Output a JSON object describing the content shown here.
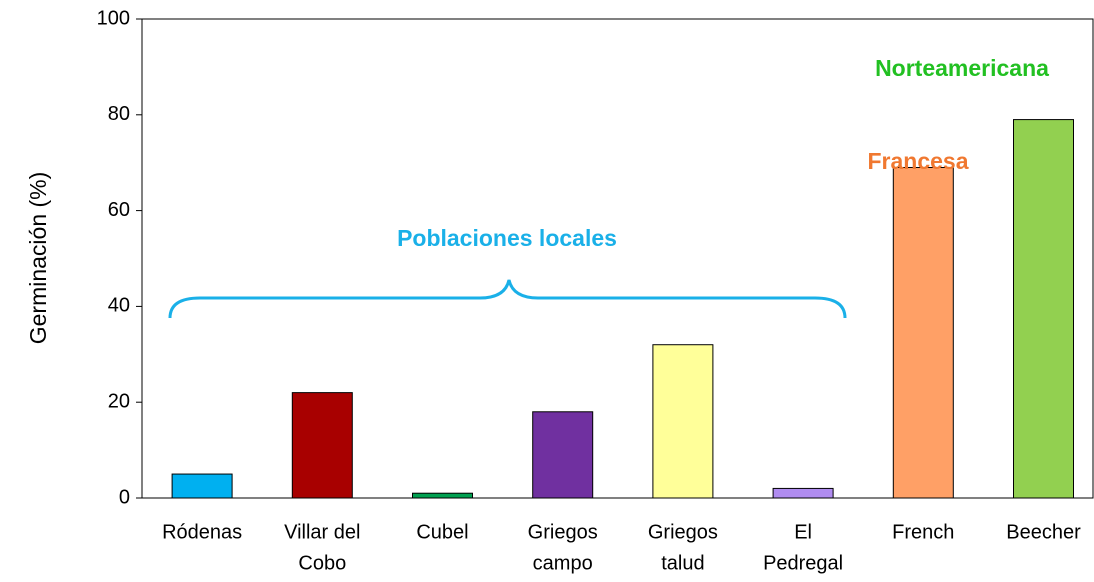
{
  "chart_data": {
    "type": "bar",
    "ylabel": "Germinación (%)",
    "categories": [
      [
        "Ródenas"
      ],
      [
        "Villar del",
        "Cobo"
      ],
      [
        "Cubel"
      ],
      [
        "Griegos",
        "campo"
      ],
      [
        "Griegos",
        "talud"
      ],
      [
        "El",
        "Pedregal"
      ],
      [
        "French"
      ],
      [
        "Beecher"
      ]
    ],
    "values": [
      5,
      22,
      1,
      18,
      32,
      2,
      69,
      79
    ],
    "colors": [
      "#00b0f0",
      "#a80000",
      "#00a050",
      "#7030a0",
      "#ffff99",
      "#b08cf0",
      "#ffa066",
      "#92d050"
    ],
    "ylim": [
      0,
      100
    ],
    "yticks": [
      0,
      20,
      40,
      60,
      80,
      100
    ],
    "annotations": [
      {
        "text": "Poblaciones locales",
        "color": "#1ab0e8"
      },
      {
        "text": "Francesa",
        "color": "#f07830"
      },
      {
        "text": "Norteamericana",
        "color": "#22c022"
      }
    ]
  }
}
